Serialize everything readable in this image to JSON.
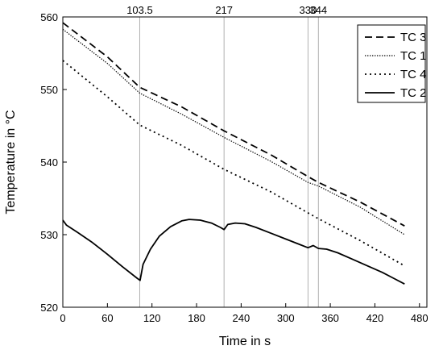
{
  "chart_data": {
    "type": "line",
    "xlabel": "Time in s",
    "ylabel": "Temperature in °C",
    "xlim": [
      0,
      490
    ],
    "ylim": [
      520,
      560
    ],
    "x_ticks": [
      0,
      60,
      120,
      180,
      240,
      300,
      360,
      420,
      480
    ],
    "y_ticks": [
      520,
      530,
      540,
      550,
      560
    ],
    "grid": false,
    "legend_position": "top-right",
    "vertical_markers": [
      {
        "x": 103.5,
        "label": "103.5"
      },
      {
        "x": 217,
        "label": "217"
      },
      {
        "x": 330,
        "label": "330"
      },
      {
        "x": 344,
        "label": "344"
      }
    ],
    "series": [
      {
        "name": "TC 3",
        "style": "dashed",
        "color": "#000000",
        "x": [
          0,
          60,
          103.5,
          160,
          217,
          280,
          330,
          344,
          400,
          460
        ],
        "y": [
          559.2,
          554.5,
          550.3,
          547.6,
          544.3,
          541.0,
          538.0,
          537.2,
          534.5,
          531.2
        ]
      },
      {
        "name": "TC 1",
        "style": "dotted",
        "color": "#000000",
        "x": [
          0,
          60,
          103.5,
          160,
          217,
          280,
          330,
          344,
          400,
          460
        ],
        "y": [
          558.3,
          553.6,
          549.5,
          546.6,
          543.4,
          540.1,
          537.2,
          536.7,
          533.8,
          530.0
        ]
      },
      {
        "name": "TC 4",
        "style": "dotted-sparse",
        "color": "#000000",
        "x": [
          0,
          60,
          103.5,
          160,
          217,
          280,
          330,
          344,
          400,
          460
        ],
        "y": [
          554.0,
          549.0,
          545.1,
          542.3,
          539.0,
          535.9,
          533.0,
          532.2,
          529.2,
          525.7
        ]
      },
      {
        "name": "TC 2",
        "style": "solid",
        "color": "#000000",
        "x": [
          0,
          5,
          20,
          40,
          60,
          80,
          100,
          104,
          108,
          118,
          130,
          145,
          160,
          170,
          185,
          200,
          212,
          217,
          222,
          232,
          245,
          260,
          280,
          300,
          320,
          330,
          337,
          344,
          355,
          370,
          390,
          410,
          430,
          445,
          460
        ],
        "y": [
          532.0,
          531.3,
          530.3,
          528.9,
          527.3,
          525.6,
          524.0,
          523.7,
          525.9,
          528.0,
          529.8,
          531.1,
          531.9,
          532.1,
          532.0,
          531.6,
          531.0,
          530.7,
          531.4,
          531.6,
          531.5,
          531.0,
          530.2,
          529.4,
          528.6,
          528.2,
          528.5,
          528.1,
          528.0,
          527.5,
          526.6,
          525.7,
          524.8,
          524.0,
          523.2
        ]
      }
    ]
  }
}
